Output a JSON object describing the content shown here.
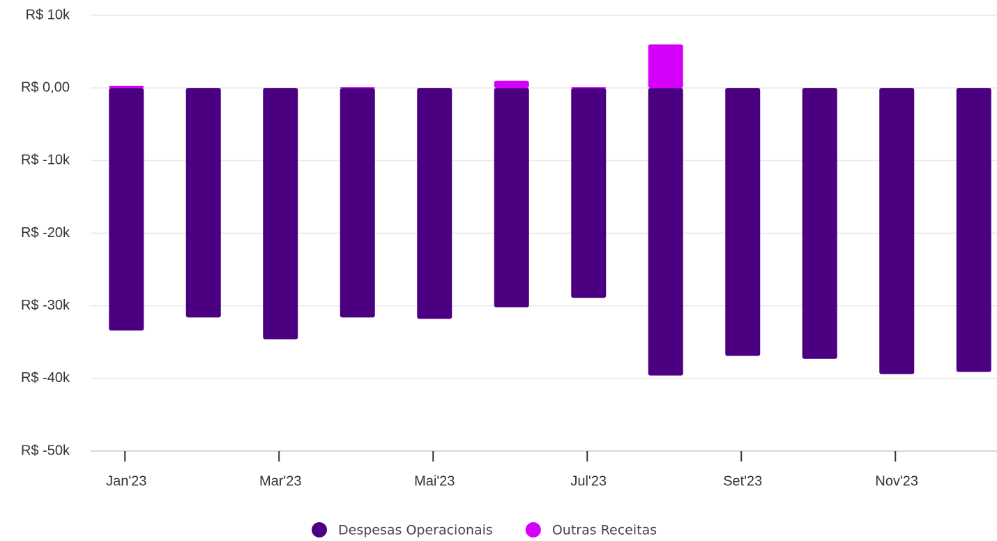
{
  "chart_data": {
    "type": "bar",
    "categories": [
      "Jan'23",
      null,
      "Mar'23",
      null,
      "Mai'23",
      null,
      "Jul'23",
      null,
      "Set'23",
      null,
      "Nov'23",
      null
    ],
    "series": [
      {
        "name": "Despesas Operacionais",
        "color": "#4b0082",
        "values": [
          -33400,
          -31600,
          -34600,
          -31600,
          -31800,
          -30200,
          -28900,
          -39600,
          -36900,
          -37300,
          -39400,
          -39100
        ]
      },
      {
        "name": "Outras Receitas",
        "color": "#d500f9",
        "values": [
          300,
          0,
          0,
          100,
          0,
          1000,
          100,
          6000,
          0,
          0,
          0,
          0
        ]
      }
    ],
    "stacked": true,
    "ylim": [
      -50000,
      10000
    ],
    "yticks": [
      {
        "value": -50000,
        "label": "R$ -50k"
      },
      {
        "value": -40000,
        "label": "R$ -40k"
      },
      {
        "value": -30000,
        "label": "R$ -30k"
      },
      {
        "value": -20000,
        "label": "R$ -20k"
      },
      {
        "value": -10000,
        "label": "R$ -10k"
      },
      {
        "value": 0,
        "label": "R$ 0,00"
      },
      {
        "value": 10000,
        "label": "R$ 10k"
      }
    ],
    "grid": true
  }
}
